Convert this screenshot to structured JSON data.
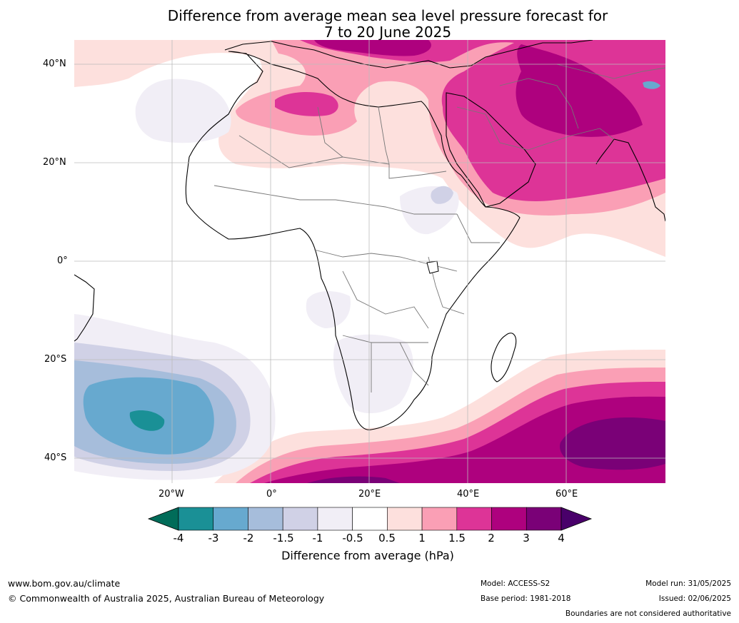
{
  "title_line1": "Difference from average mean sea level pressure forecast for",
  "title_line2": "7 to 20 June 2025",
  "lat_labels": [
    "40°N",
    "20°N",
    "0°",
    "20°S",
    "40°S"
  ],
  "lon_labels": [
    "20°W",
    "0°",
    "20°E",
    "40°E",
    "60°E"
  ],
  "colorbar": {
    "title": "Difference from average (hPa)",
    "ticks": [
      "-4",
      "-3",
      "-2",
      "-1.5",
      "-1",
      "-0.5",
      "0.5",
      "1",
      "1.5",
      "2",
      "3",
      "4"
    ],
    "colors": [
      "#1a9096",
      "#67a9cf",
      "#a6bddb",
      "#d0d1e6",
      "#f1eef6",
      "#ffffff",
      "#fde0dd",
      "#fa9fb5",
      "#dd3497",
      "#ae017e",
      "#7a0177"
    ],
    "under_color": "#016c59",
    "over_color": "#49006a"
  },
  "footer": {
    "url": "www.bom.gov.au/climate",
    "copyright": "© Commonwealth of Australia 2025, Australian Bureau of Meteorology",
    "model": "Model: ACCESS-S2",
    "base_period": "Base period: 1981-2018",
    "model_run": "Model run: 31/05/2025",
    "issued": "Issued: 02/06/2025",
    "disclaimer": "Boundaries are not considered authoritative"
  }
}
